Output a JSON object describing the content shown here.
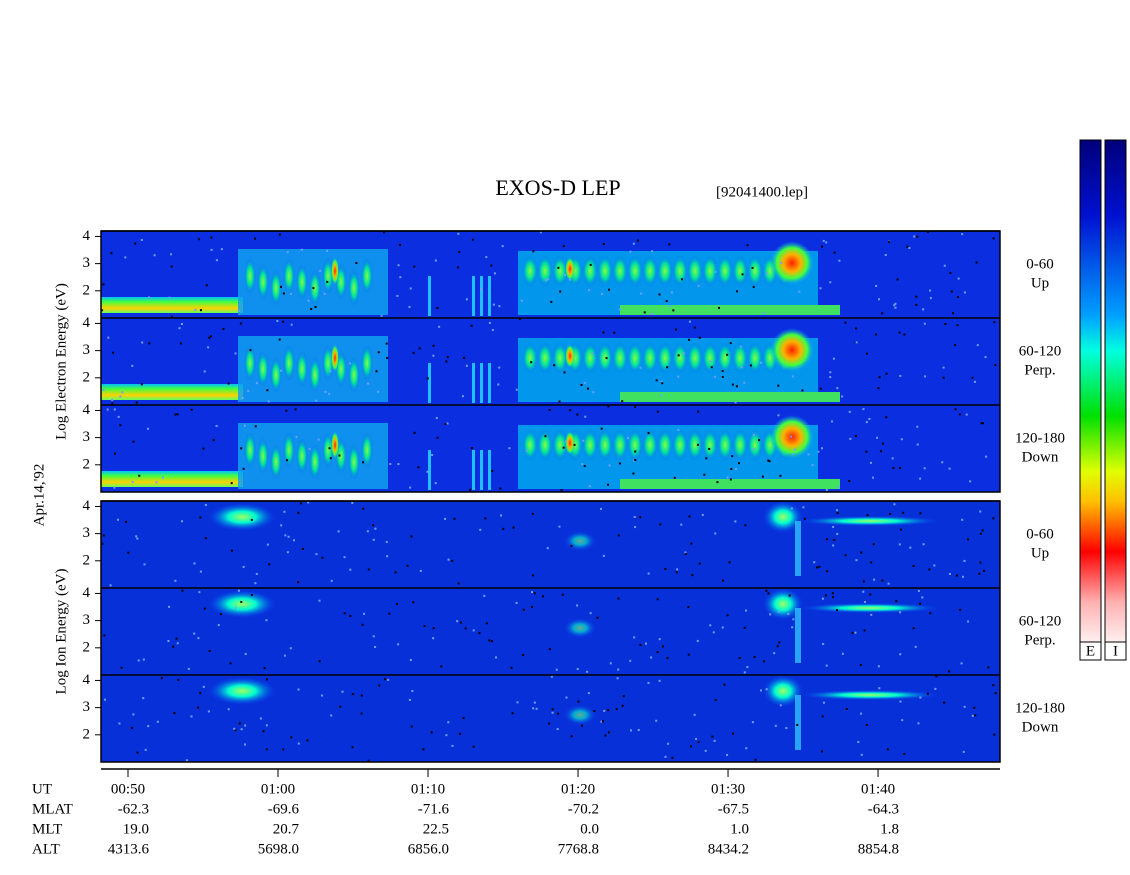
{
  "chart_data": {
    "type": "spectrogram",
    "title": "EXOS-D LEP",
    "subtitle": "[92041400.lep]",
    "date_label": "Apr.14,'92",
    "xlabel": "UT",
    "groups": [
      {
        "ylabel": "Log Electron Energy (eV)",
        "colorbar_label": "E",
        "panels": [
          {
            "pitch_angle": "0-60",
            "direction": "Up"
          },
          {
            "pitch_angle": "60-120",
            "direction": "Perp."
          },
          {
            "pitch_angle": "120-180",
            "direction": "Down"
          }
        ]
      },
      {
        "ylabel": "Log Ion Energy (eV)",
        "colorbar_label": "I",
        "panels": [
          {
            "pitch_angle": "0-60",
            "direction": "Up"
          },
          {
            "pitch_angle": "60-120",
            "direction": "Perp."
          },
          {
            "pitch_angle": "120-180",
            "direction": "Down"
          }
        ]
      }
    ],
    "ylim": [
      1,
      4.2
    ],
    "yticks": [
      2,
      3,
      4
    ],
    "xlim": [
      48.2,
      108.13
    ],
    "xticks": [
      {
        "value": 50,
        "label": "00:50"
      },
      {
        "value": 60,
        "label": "01:00"
      },
      {
        "value": 70,
        "label": "01:10"
      },
      {
        "value": 80,
        "label": "01:20"
      },
      {
        "value": 90,
        "label": "01:30"
      },
      {
        "value": 100,
        "label": "01:40"
      }
    ],
    "ephemeris": [
      {
        "name": "MLAT",
        "values": [
          "-62.3",
          "-69.6",
          "-71.6",
          "-70.2",
          "-67.5",
          "-64.3"
        ]
      },
      {
        "name": "MLT",
        "values": [
          "19.0",
          "20.7",
          "22.5",
          "0.0",
          "1.0",
          "1.8"
        ]
      },
      {
        "name": "ALT",
        "values": [
          "4313.6",
          "5698.0",
          "6856.0",
          "7768.8",
          "8434.2",
          "8854.8"
        ]
      }
    ]
  }
}
